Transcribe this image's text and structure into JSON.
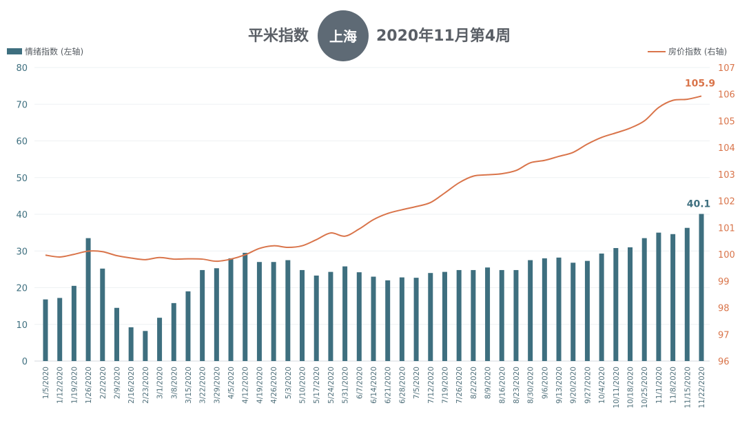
{
  "colors": {
    "bar": "#3e6f7f",
    "line": "#d9744a",
    "badge": "#5e6a75"
  },
  "chart_data": {
    "type": "bar",
    "title_prefix": "平米指数",
    "title_city": "上海",
    "title_suffix": "2020年11月第4周",
    "categories": [
      "1/5/2020",
      "1/12/2020",
      "1/19/2020",
      "1/26/2020",
      "2/2/2020",
      "2/9/2020",
      "2/16/2020",
      "2/23/2020",
      "3/1/2020",
      "3/8/2020",
      "3/15/2020",
      "3/22/2020",
      "3/29/2020",
      "4/5/2020",
      "4/12/2020",
      "4/19/2020",
      "4/26/2020",
      "5/3/2020",
      "5/10/2020",
      "5/17/2020",
      "5/24/2020",
      "5/31/2020",
      "6/7/2020",
      "6/14/2020",
      "6/21/2020",
      "6/28/2020",
      "7/5/2020",
      "7/12/2020",
      "7/19/2020",
      "7/26/2020",
      "8/2/2020",
      "8/9/2020",
      "8/16/2020",
      "8/23/2020",
      "8/30/2020",
      "9/6/2020",
      "9/13/2020",
      "9/20/2020",
      "9/27/2020",
      "10/4/2020",
      "10/11/2020",
      "10/18/2020",
      "10/25/2020",
      "11/1/2020",
      "11/8/2020",
      "11/15/2020",
      "11/22/2020"
    ],
    "series": [
      {
        "name": "情绪指数 (左轴)",
        "type": "bar",
        "axis": "left",
        "values": [
          16.8,
          17.2,
          20.5,
          33.5,
          25.2,
          14.5,
          9.2,
          8.2,
          11.8,
          15.8,
          19.0,
          24.8,
          25.3,
          28.0,
          29.5,
          27.0,
          27.0,
          27.5,
          24.8,
          23.3,
          24.3,
          25.8,
          24.2,
          23.0,
          22.0,
          22.8,
          22.7,
          24.0,
          24.3,
          24.8,
          24.8,
          25.5,
          24.8,
          24.8,
          27.5,
          28.0,
          28.2,
          26.8,
          27.3,
          29.3,
          30.8,
          31.0,
          33.5,
          35.0,
          34.6,
          36.3,
          40.1
        ]
      },
      {
        "name": "房价指数 (右轴)",
        "type": "line",
        "axis": "right",
        "values": [
          99.97,
          99.9,
          100.0,
          100.12,
          100.1,
          99.95,
          99.86,
          99.8,
          99.88,
          99.82,
          99.83,
          99.82,
          99.74,
          99.82,
          99.98,
          100.22,
          100.32,
          100.26,
          100.32,
          100.55,
          100.8,
          100.68,
          100.95,
          101.3,
          101.53,
          101.67,
          101.79,
          101.94,
          102.3,
          102.68,
          102.93,
          102.98,
          103.02,
          103.14,
          103.43,
          103.52,
          103.67,
          103.82,
          104.13,
          104.38,
          104.55,
          104.73,
          105.0,
          105.5,
          105.77,
          105.81,
          105.93
        ]
      }
    ],
    "y_left": {
      "min": 0,
      "max": 80,
      "ticks": [
        0,
        10,
        20,
        30,
        40,
        50,
        60,
        70,
        80
      ]
    },
    "y_right": {
      "min": 96,
      "max": 107,
      "ticks": [
        96,
        97,
        98,
        99,
        100,
        101,
        102,
        103,
        104,
        105,
        106,
        107
      ]
    },
    "grid": true,
    "legend": "top",
    "last_bar_label": "40.1",
    "last_line_label": "105.9"
  }
}
